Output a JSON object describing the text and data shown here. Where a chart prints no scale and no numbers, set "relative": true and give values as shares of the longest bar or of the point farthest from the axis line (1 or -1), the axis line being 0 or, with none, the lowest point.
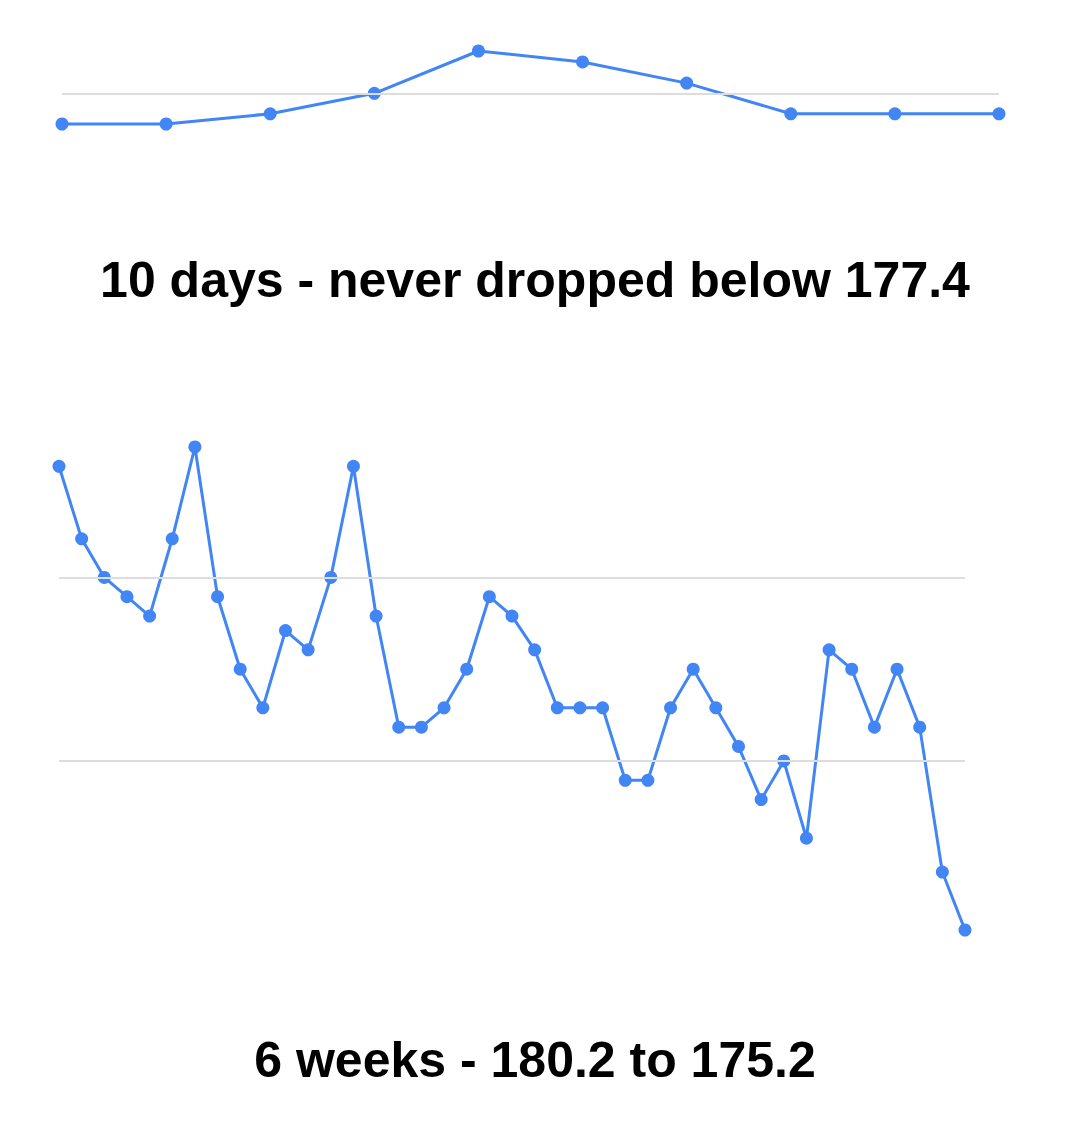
{
  "chart_data": [
    {
      "type": "line",
      "title": "10 days - never dropped below 177.4",
      "relative": true,
      "marker": "circle",
      "color": "#4285f4",
      "ref_lines": [
        {
          "axis": "y",
          "value": 0.41,
          "label": null,
          "color": "#dddddd"
        }
      ],
      "categories": [
        null,
        null,
        null,
        null,
        null,
        null,
        null,
        null,
        null,
        null
      ],
      "values": [
        0,
        0,
        0.14,
        0.42,
        1,
        0.85,
        0.56,
        0.14,
        0.14,
        0.14
      ]
    },
    {
      "type": "line",
      "title": "6 weeks - 180.2 to 175.2",
      "relative": true,
      "marker": "circle",
      "color": "#4285f4",
      "ref_lines": [
        {
          "axis": "y",
          "value": 0.73,
          "label": null,
          "color": "#dddddd"
        },
        {
          "axis": "y",
          "value": 0.35,
          "label": null,
          "color": "#dddddd"
        }
      ],
      "categories": [
        null,
        null,
        null,
        null,
        null,
        null,
        null,
        null,
        null,
        null,
        null,
        null,
        null,
        null,
        null,
        null,
        null,
        null,
        null,
        null,
        null,
        null,
        null,
        null,
        null,
        null,
        null,
        null,
        null,
        null,
        null,
        null,
        null,
        null,
        null,
        null,
        null,
        null,
        null,
        null,
        null
      ],
      "values": [
        0.96,
        0.81,
        0.73,
        0.69,
        0.65,
        0.81,
        1,
        0.69,
        0.54,
        0.46,
        0.62,
        0.58,
        0.73,
        0.96,
        0.65,
        0.42,
        0.42,
        0.46,
        0.54,
        0.69,
        0.65,
        0.58,
        0.46,
        0.46,
        0.46,
        0.31,
        0.31,
        0.46,
        0.54,
        0.46,
        0.38,
        0.27,
        0.35,
        0.19,
        0.58,
        0.54,
        0.42,
        0.54,
        0.42,
        0.12,
        0
      ]
    }
  ]
}
